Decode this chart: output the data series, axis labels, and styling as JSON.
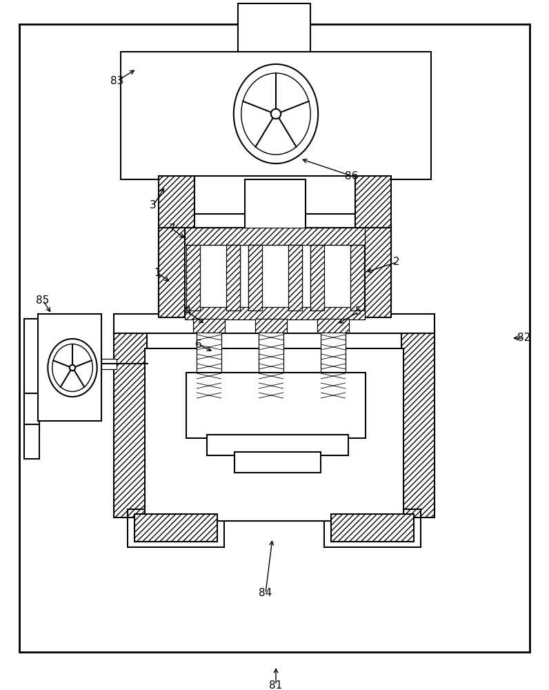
{
  "bg": "#ffffff",
  "lc": "#000000",
  "fw": 7.96,
  "fh": 10.0,
  "lw": 1.5,
  "lwt": 0.9,
  "fs": 11
}
